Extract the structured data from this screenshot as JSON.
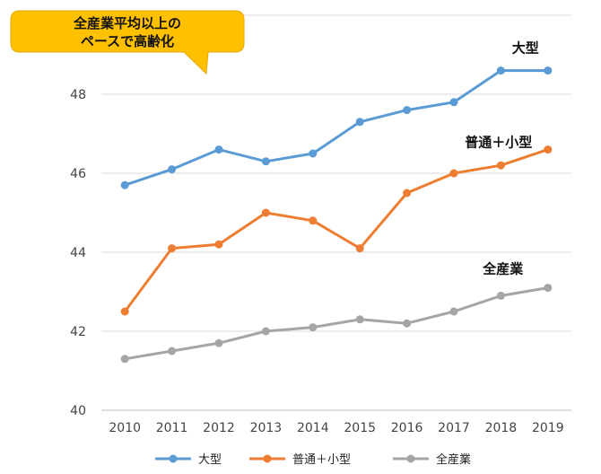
{
  "callout": {
    "line1": "全産業平均以上の",
    "line2": "ペースで高齢化",
    "fill": "#FFC000",
    "border": "#E6A800"
  },
  "chart_data": {
    "type": "line",
    "title": "",
    "xlabel": "",
    "ylabel": "",
    "x": [
      "2010",
      "2011",
      "2012",
      "2013",
      "2014",
      "2015",
      "2016",
      "2017",
      "2018",
      "2019"
    ],
    "ylim": [
      40,
      50
    ],
    "yticks": [
      40,
      42,
      44,
      46,
      48
    ],
    "grid": true,
    "legend_position": "bottom",
    "series": [
      {
        "name": "大型",
        "color": "#5B9BD5",
        "values": [
          45.7,
          46.1,
          46.6,
          46.3,
          46.5,
          47.3,
          47.6,
          47.8,
          48.6,
          48.6
        ]
      },
      {
        "name": "普通＋小型",
        "color": "#ED7D31",
        "values": [
          42.5,
          44.1,
          44.2,
          45.0,
          44.8,
          44.1,
          45.5,
          46.0,
          46.2,
          46.6
        ]
      },
      {
        "name": "全産業",
        "color": "#A5A5A5",
        "values": [
          41.3,
          41.5,
          41.7,
          42.0,
          42.1,
          42.3,
          42.2,
          42.5,
          42.9,
          43.1
        ]
      }
    ]
  }
}
